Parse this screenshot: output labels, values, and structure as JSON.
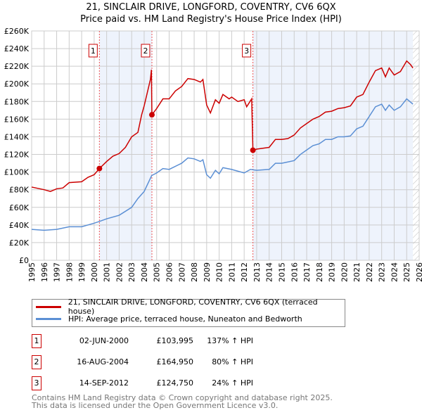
{
  "title": "21, SINCLAIR DRIVE, LONGFORD, COVENTRY, CV6 6QX",
  "subtitle": "Price paid vs. HM Land Registry's House Price Index (HPI)",
  "chart_data": {
    "type": "line",
    "title": "21, SINCLAIR DRIVE, LONGFORD, COVENTRY, CV6 6QX",
    "subtitle": "Price paid vs. HM Land Registry's House Price Index (HPI)",
    "xlim": [
      1995,
      2026
    ],
    "ylim": [
      0,
      260000
    ],
    "x_ticks": [
      "1995",
      "1996",
      "1997",
      "1998",
      "1999",
      "2000",
      "2001",
      "2002",
      "2003",
      "2004",
      "2005",
      "2006",
      "2007",
      "2008",
      "2009",
      "2010",
      "2011",
      "2012",
      "2013",
      "2014",
      "2015",
      "2016",
      "2017",
      "2018",
      "2019",
      "2020",
      "2021",
      "2022",
      "2023",
      "2024",
      "2025",
      "2026"
    ],
    "y_ticks": [
      "£0",
      "£20K",
      "£40K",
      "£60K",
      "£80K",
      "£100K",
      "£120K",
      "£140K",
      "£160K",
      "£180K",
      "£200K",
      "£220K",
      "£240K",
      "£260K"
    ],
    "grid": true,
    "series": [
      {
        "name": "21, SINCLAIR DRIVE, LONGFORD, COVENTRY, CV6 6QX (terraced house)",
        "color": "#cc0000",
        "x": [
          1995,
          1996,
          1996.5,
          1997,
          1997.5,
          1998,
          1999,
          1999.5,
          2000,
          2000.42,
          2001,
          2001.5,
          2002,
          2002.5,
          2003,
          2003.5,
          2003.8,
          2004,
          2004.5,
          2004.58,
          2004.62,
          2005,
          2005.5,
          2006,
          2006.5,
          2007,
          2007.5,
          2008,
          2008.5,
          2008.7,
          2009,
          2009.3,
          2009.7,
          2010,
          2010.3,
          2010.8,
          2011,
          2011.5,
          2012,
          2012.2,
          2012.6,
          2012.7,
          2013,
          2013.5,
          2014,
          2014.5,
          2015,
          2015.5,
          2016,
          2016.5,
          2017,
          2017.5,
          2018,
          2018.5,
          2019,
          2019.5,
          2020,
          2020.5,
          2021,
          2021.5,
          2022,
          2022.5,
          2023,
          2023.3,
          2023.6,
          2024,
          2024.5,
          2025,
          2025.3,
          2025.5
        ],
        "y": [
          83000,
          80000,
          78000,
          81000,
          82000,
          88000,
          89000,
          94000,
          97000,
          103995,
          112000,
          118000,
          121000,
          128000,
          140000,
          145000,
          165000,
          175000,
          205000,
          216000,
          164950,
          172000,
          183000,
          183000,
          192000,
          197000,
          206000,
          205000,
          202000,
          205000,
          176000,
          167000,
          182000,
          178000,
          188000,
          183000,
          185000,
          180000,
          182000,
          174000,
          183000,
          124750,
          126000,
          127000,
          128000,
          137000,
          137000,
          138000,
          142000,
          150000,
          155000,
          160000,
          163000,
          168000,
          169000,
          172000,
          173000,
          175000,
          185000,
          188000,
          202000,
          215000,
          218000,
          208000,
          218000,
          210000,
          214000,
          226000,
          222000,
          218000
        ]
      },
      {
        "name": "HPI: Average price, terraced house, Nuneaton and Bedworth",
        "color": "#5b8fd4",
        "x": [
          1995,
          1996,
          1997,
          1998,
          1999,
          2000,
          2000.42,
          2001,
          2002,
          2003,
          2003.5,
          2004,
          2004.6,
          2005,
          2005.5,
          2006,
          2007,
          2007.5,
          2008,
          2008.5,
          2008.7,
          2009,
          2009.3,
          2009.7,
          2010,
          2010.3,
          2011,
          2011.5,
          2012,
          2012.5,
          2013,
          2014,
          2014.5,
          2015,
          2016,
          2016.5,
          2017,
          2017.5,
          2018,
          2018.5,
          2019,
          2019.5,
          2020,
          2020.5,
          2021,
          2021.5,
          2022,
          2022.5,
          2023,
          2023.3,
          2023.6,
          2024,
          2024.5,
          2025,
          2025.5
        ],
        "y": [
          35000,
          34000,
          35000,
          38000,
          38000,
          42000,
          44000,
          47000,
          51000,
          60000,
          70000,
          78000,
          96000,
          99000,
          104000,
          103000,
          110000,
          116000,
          115000,
          112000,
          114000,
          97000,
          93000,
          102000,
          98000,
          105000,
          103000,
          101000,
          99000,
          103000,
          102000,
          103000,
          110000,
          110000,
          113000,
          120000,
          125000,
          130000,
          132000,
          137000,
          137000,
          140000,
          140000,
          141000,
          149000,
          152000,
          163000,
          174000,
          177000,
          170000,
          176000,
          170000,
          174000,
          183000,
          177000
        ]
      }
    ],
    "sales": [
      {
        "label": "1",
        "x": 2000.42,
        "date": "02-JUN-2000",
        "price": "£103,995",
        "value": 103995,
        "hpi": "137% ↑ HPI"
      },
      {
        "label": "2",
        "x": 2004.62,
        "date": "16-AUG-2004",
        "price": "£164,950",
        "value": 164950,
        "hpi": "80% ↑ HPI"
      },
      {
        "label": "3",
        "x": 2012.7,
        "date": "14-SEP-2012",
        "price": "£124,750",
        "value": 124750,
        "hpi": "24% ↑ HPI"
      }
    ],
    "legend_position": "below"
  },
  "footer": [
    "Contains HM Land Registry data © Crown copyright and database right 2025.",
    "This data is licensed under the Open Government Licence v3.0."
  ]
}
